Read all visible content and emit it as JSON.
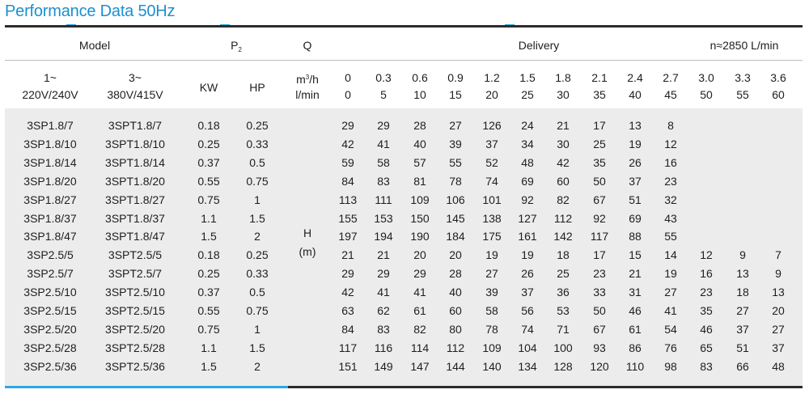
{
  "title": "Performance Data 50Hz",
  "header": {
    "model": "Model",
    "p2_main": "P",
    "p2_sub": "2",
    "q": "Q",
    "delivery": "Delivery",
    "speed": "n≈2850 L/min"
  },
  "subheader": {
    "phase1_symbol": "1~",
    "phase1_voltage": "220V/240V",
    "phase3_symbol": "3~",
    "phase3_voltage": "380V/415V",
    "kw": "KW",
    "hp": "HP",
    "m3h_main": "m",
    "m3h_sup": "3",
    "m3h_rest": "/h",
    "lmin": "l/min",
    "m3h_values": [
      "0",
      "0.3",
      "0.6",
      "0.9",
      "1.2",
      "1.5",
      "1.8",
      "2.1",
      "2.4",
      "2.7",
      "3.0",
      "3.3",
      "3.6"
    ],
    "lmin_values": [
      "0",
      "5",
      "10",
      "15",
      "20",
      "25",
      "30",
      "35",
      "40",
      "45",
      "50",
      "55",
      "60"
    ]
  },
  "head_label": "H",
  "head_unit": "(m)",
  "rows": [
    {
      "m1": "3SP1.8/7",
      "m3": "3SPT1.8/7",
      "kw": "0.18",
      "hp": "0.25",
      "h": [
        "29",
        "29",
        "28",
        "27",
        "126",
        "24",
        "21",
        "17",
        "13",
        "8",
        "",
        "",
        ""
      ]
    },
    {
      "m1": "3SP1.8/10",
      "m3": "3SPT1.8/10",
      "kw": "0.25",
      "hp": "0.33",
      "h": [
        "42",
        "41",
        "40",
        "39",
        "37",
        "34",
        "30",
        "25",
        "19",
        "12",
        "",
        "",
        ""
      ]
    },
    {
      "m1": "3SP1.8/14",
      "m3": "3SPT1.8/14",
      "kw": "0.37",
      "hp": "0.5",
      "h": [
        "59",
        "58",
        "57",
        "55",
        "52",
        "48",
        "42",
        "35",
        "26",
        "16",
        "",
        "",
        ""
      ]
    },
    {
      "m1": "3SP1.8/20",
      "m3": "3SPT1.8/20",
      "kw": "0.55",
      "hp": "0.75",
      "h": [
        "84",
        "83",
        "81",
        "78",
        "74",
        "69",
        "60",
        "50",
        "37",
        "23",
        "",
        "",
        ""
      ]
    },
    {
      "m1": "3SP1.8/27",
      "m3": "3SPT1.8/27",
      "kw": "0.75",
      "hp": "1",
      "h": [
        "113",
        "111",
        "109",
        "106",
        "101",
        "92",
        "82",
        "67",
        "51",
        "32",
        "",
        "",
        ""
      ]
    },
    {
      "m1": "3SP1.8/37",
      "m3": "3SPT1.8/37",
      "kw": "1.1",
      "hp": "1.5",
      "h": [
        "155",
        "153",
        "150",
        "145",
        "138",
        "127",
        "112",
        "92",
        "69",
        "43",
        "",
        "",
        ""
      ]
    },
    {
      "m1": "3SP1.8/47",
      "m3": "3SPT1.8/47",
      "kw": "1.5",
      "hp": "2",
      "h": [
        "197",
        "194",
        "190",
        "184",
        "175",
        "161",
        "142",
        "117",
        "88",
        "55",
        "",
        "",
        ""
      ]
    },
    {
      "m1": "3SP2.5/5",
      "m3": "3SPT2.5/5",
      "kw": "0.18",
      "hp": "0.25",
      "h": [
        "21",
        "21",
        "20",
        "20",
        "19",
        "19",
        "18",
        "17",
        "15",
        "14",
        "12",
        "9",
        "7"
      ]
    },
    {
      "m1": "3SP2.5/7",
      "m3": "3SPT2.5/7",
      "kw": "0.25",
      "hp": "0.33",
      "h": [
        "29",
        "29",
        "29",
        "28",
        "27",
        "26",
        "25",
        "23",
        "21",
        "19",
        "16",
        "13",
        "9"
      ]
    },
    {
      "m1": "3SP2.5/10",
      "m3": "3SPT2.5/10",
      "kw": "0.37",
      "hp": "0.5",
      "h": [
        "42",
        "41",
        "41",
        "40",
        "39",
        "37",
        "36",
        "33",
        "31",
        "27",
        "23",
        "18",
        "13"
      ]
    },
    {
      "m1": "3SP2.5/15",
      "m3": "3SPT2.5/15",
      "kw": "0.55",
      "hp": "0.75",
      "h": [
        "63",
        "62",
        "61",
        "60",
        "58",
        "56",
        "53",
        "50",
        "46",
        "41",
        "35",
        "27",
        "20"
      ]
    },
    {
      "m1": "3SP2.5/20",
      "m3": "3SPT2.5/20",
      "kw": "0.75",
      "hp": "1",
      "h": [
        "84",
        "83",
        "82",
        "80",
        "78",
        "74",
        "71",
        "67",
        "61",
        "54",
        "46",
        "37",
        "27"
      ]
    },
    {
      "m1": "3SP2.5/28",
      "m3": "3SPT2.5/28",
      "kw": "1.1",
      "hp": "1.5",
      "h": [
        "117",
        "116",
        "114",
        "112",
        "109",
        "104",
        "100",
        "93",
        "86",
        "76",
        "65",
        "51",
        "37"
      ]
    },
    {
      "m1": "3SP2.5/36",
      "m3": "3SPT2.5/36",
      "kw": "1.5",
      "hp": "2",
      "h": [
        "151",
        "149",
        "147",
        "144",
        "140",
        "134",
        "128",
        "120",
        "110",
        "98",
        "83",
        "66",
        "48"
      ]
    }
  ],
  "colors": {
    "title": "#1c8fd0",
    "accent": "#2aa8e6",
    "panel": "#ececec",
    "rule": "#2b2b2b"
  }
}
